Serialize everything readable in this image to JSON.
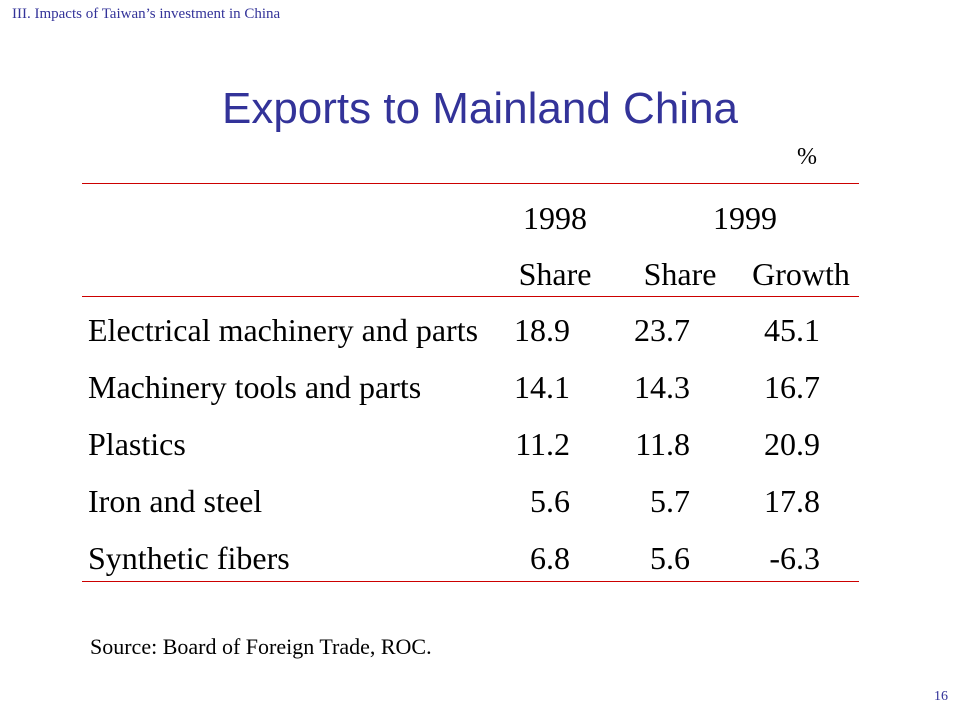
{
  "section_label": "III. Impacts of Taiwan’s investment in China",
  "title": "Exports to Mainland China",
  "unit": "%",
  "table": {
    "year_headers": [
      "1998",
      "1999"
    ],
    "sub_headers": [
      "Share",
      "Share",
      "Growth"
    ],
    "rows": [
      {
        "label": "Electrical machinery and parts",
        "share_1998": "18.9",
        "share_1999": "23.7",
        "growth_1999": "45.1"
      },
      {
        "label": "Machinery tools and parts",
        "share_1998": "14.1",
        "share_1999": "14.3",
        "growth_1999": "16.7"
      },
      {
        "label": "Plastics",
        "share_1998": "11.2",
        "share_1999": "11.8",
        "growth_1999": "20.9"
      },
      {
        "label": "Iron and steel",
        "share_1998": "5.6",
        "share_1999": "5.7",
        "growth_1999": "17.8"
      },
      {
        "label": "Synthetic fibers",
        "share_1998": "6.8",
        "share_1999": "5.6",
        "growth_1999": "-6.3"
      }
    ]
  },
  "source": "Source: Board of Foreign Trade, ROC.",
  "page_number": "16",
  "colors": {
    "title": "#333399",
    "rules": "#cc0000",
    "text": "#000000"
  }
}
